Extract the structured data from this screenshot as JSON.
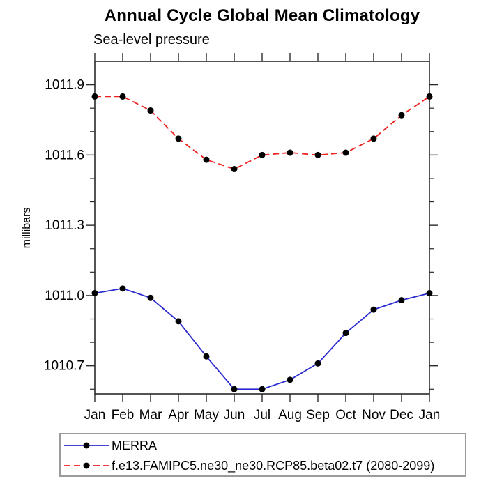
{
  "title": "Annual Cycle Global Mean Climatology",
  "subtitle": "Sea-level pressure",
  "ylabel": "millibars",
  "legend": {
    "entries": [
      {
        "label": "MERRA",
        "color": "#2a2ad0",
        "line_style": "solid",
        "marker": "filled-circle",
        "marker_color": "#000000"
      },
      {
        "label": "f.e13.FAMIPC5.ne30_ne30.RCP85.beta02.t7 (2080-2099)",
        "color": "#ee2020",
        "line_style": "dashed",
        "marker": "filled-circle",
        "marker_color": "#000000"
      }
    ]
  },
  "chart_data": {
    "type": "line",
    "title": "Annual Cycle Global Mean Climatology",
    "subtitle": "Sea-level pressure",
    "xlabel": "",
    "ylabel": "millibars",
    "categories": [
      "Jan",
      "Feb",
      "Mar",
      "Apr",
      "May",
      "Jun",
      "Jul",
      "Aug",
      "Sep",
      "Oct",
      "Nov",
      "Dec",
      "Jan"
    ],
    "series": [
      {
        "name": "MERRA",
        "color": "#2a2ad0",
        "line_style": "solid",
        "marker": "filled-circle",
        "marker_color": "#000000",
        "values": [
          1011.01,
          1011.03,
          1010.99,
          1010.89,
          1010.74,
          1010.6,
          1010.6,
          1010.64,
          1010.71,
          1010.84,
          1010.94,
          1010.98,
          1011.01
        ]
      },
      {
        "name": "f.e13.FAMIPC5.ne30_ne30.RCP85.beta02.t7 (2080-2099)",
        "color": "#ee2020",
        "line_style": "dashed",
        "marker": "filled-circle",
        "marker_color": "#000000",
        "values": [
          1011.85,
          1011.85,
          1011.79,
          1011.67,
          1011.58,
          1011.54,
          1011.6,
          1011.61,
          1011.6,
          1011.61,
          1011.67,
          1011.77,
          1011.85
        ]
      }
    ],
    "ylim": [
      1010.58,
      1012.0
    ],
    "yticks_major": [
      1010.7,
      1011.0,
      1011.3,
      1011.6,
      1011.9
    ],
    "ytick_labels": [
      "1010.7",
      "1011.0",
      "1011.3",
      "1011.6",
      "1011.9"
    ],
    "ytick_minor_step": 0.1,
    "grid": false,
    "axes_box": true,
    "legend_position": "bottom-left-box"
  }
}
